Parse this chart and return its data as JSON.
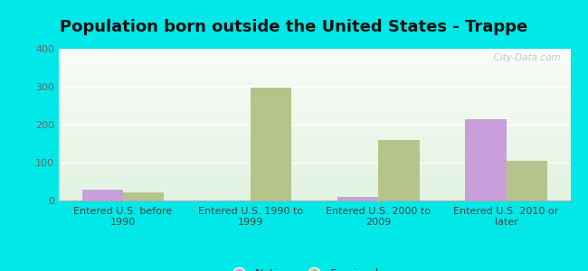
{
  "title": "Population born outside the United States - Trappe",
  "categories": [
    "Entered U.S. before\n1990",
    "Entered U.S. 1990 to\n1999",
    "Entered U.S. 2000 to\n2009",
    "Entered U.S. 2010 or\nlater"
  ],
  "native_values": [
    28,
    0,
    10,
    215
  ],
  "foreign_values": [
    22,
    297,
    160,
    105
  ],
  "native_color": "#c9a0dc",
  "foreign_color": "#b5c48a",
  "background_outer": "#00e8e8",
  "ylim": [
    0,
    400
  ],
  "yticks": [
    0,
    100,
    200,
    300,
    400
  ],
  "bar_width": 0.32,
  "title_fontsize": 13,
  "tick_fontsize": 8,
  "legend_fontsize": 9,
  "watermark": "  City-Data.com"
}
